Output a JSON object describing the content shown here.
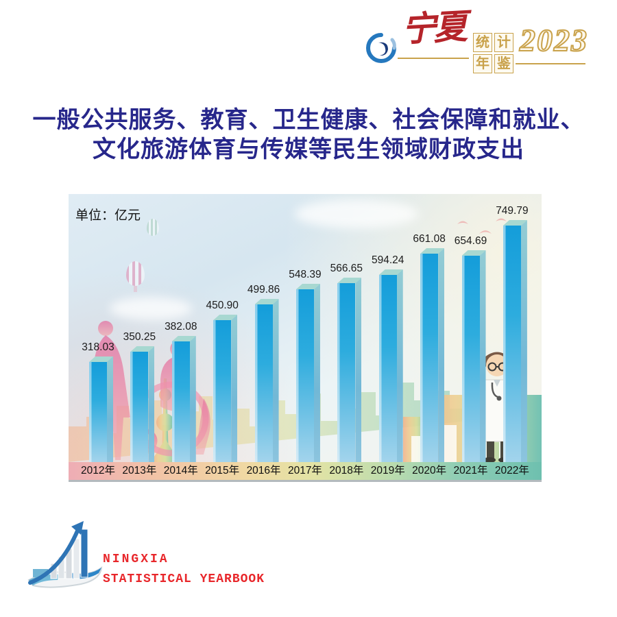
{
  "header": {
    "logo": {
      "brand_cn": "宁夏",
      "boxed_chars": [
        "统",
        "计",
        "年",
        "鉴"
      ],
      "year": "2023"
    }
  },
  "title": {
    "line1": "一般公共服务、教育、卫生健康、社会保障和就业、",
    "line2": "文化旅游体育与传媒等民生领域财政支出"
  },
  "chart_data": {
    "type": "bar",
    "title": "一般公共服务、教育、卫生健康、社会保障和就业、文化旅游体育与传媒等民生领域财政支出",
    "unit_label": "单位：亿元",
    "categories": [
      "2012年",
      "2013年",
      "2014年",
      "2015年",
      "2016年",
      "2017年",
      "2018年",
      "2019年",
      "2020年",
      "2021年",
      "2022年"
    ],
    "values": [
      318.03,
      350.25,
      382.08,
      450.9,
      499.86,
      548.39,
      566.65,
      594.24,
      661.08,
      654.69,
      749.79
    ],
    "xlabel": "",
    "ylabel": "亿元",
    "ylim": [
      0,
      800
    ],
    "grid": false,
    "legend": "none",
    "value_labels_shown": true,
    "bar_color": "#17a0dc"
  },
  "footer": {
    "brand_line1": "NINGXIA",
    "brand_line2": "STATISTICAL  YEARBOOK"
  },
  "colors": {
    "title_navy": "#27278b",
    "bar_blue": "#17a0dc",
    "gold": "#c9a24b",
    "brand_red": "#b5242a",
    "footer_red": "#e8272b"
  }
}
